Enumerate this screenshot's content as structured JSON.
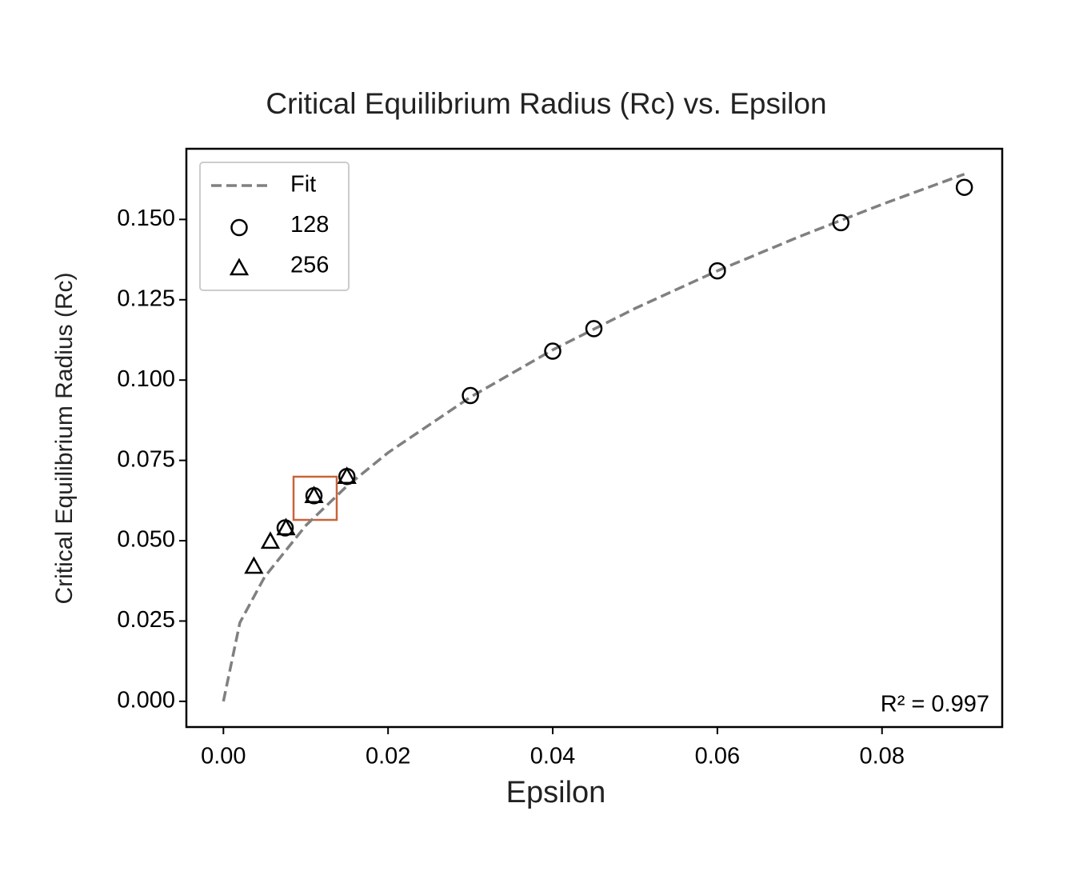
{
  "chart_data": {
    "type": "scatter",
    "title": "Critical Equilibrium Radius (Rc) vs. Epsilon",
    "x_label": "Epsilon",
    "y_label": "Critical Equilibrium Radius (Rc)",
    "annotation": "R² = 0.997",
    "xlim": [
      -0.0045,
      0.0946
    ],
    "ylim": [
      -0.008,
      0.172
    ],
    "xticks": [
      {
        "value": 0,
        "label": "0.00"
      },
      {
        "value": 0.02,
        "label": "0.02"
      },
      {
        "value": 0.04,
        "label": "0.04"
      },
      {
        "value": 0.06,
        "label": "0.06"
      },
      {
        "value": 0.08,
        "label": "0.08"
      }
    ],
    "yticks": [
      {
        "value": 0,
        "label": "0.000"
      },
      0.025,
      {
        "value": 0.05,
        "label": "0.050"
      },
      0.075,
      {
        "value": 0.1,
        "label": "0.100"
      },
      0.125,
      {
        "value": 0.15,
        "label": "0.150"
      }
    ],
    "legend": "upper left",
    "series": [
      {
        "name": "Fit",
        "color": "#808080",
        "style": "dashed",
        "x": [
          0,
          0.002,
          0.005,
          0.01,
          0.015,
          0.02,
          0.03,
          0.04,
          0.05,
          0.06,
          0.07,
          0.08,
          0.09
        ],
        "values": [
          0,
          0.0245,
          0.0387,
          0.0547,
          0.067,
          0.0774,
          0.0947,
          0.1094,
          0.1223,
          0.134,
          0.1447,
          0.1547,
          0.1641
        ]
      },
      {
        "name": "128",
        "color": "#000000",
        "marker": "circle",
        "x": [
          0.0075,
          0.011,
          0.015,
          0.03,
          0.04,
          0.045,
          0.06,
          0.075,
          0.09
        ],
        "values": [
          0.054,
          0.064,
          0.07,
          0.0952,
          0.109,
          0.116,
          0.134,
          0.149,
          0.16
        ]
      },
      {
        "name": "256",
        "color": "#000000",
        "marker": "triangle",
        "x": [
          0.0037,
          0.0057,
          0.0076,
          0.011,
          0.015
        ],
        "values": [
          0.042,
          0.0498,
          0.054,
          0.064,
          0.07
        ]
      }
    ]
  }
}
